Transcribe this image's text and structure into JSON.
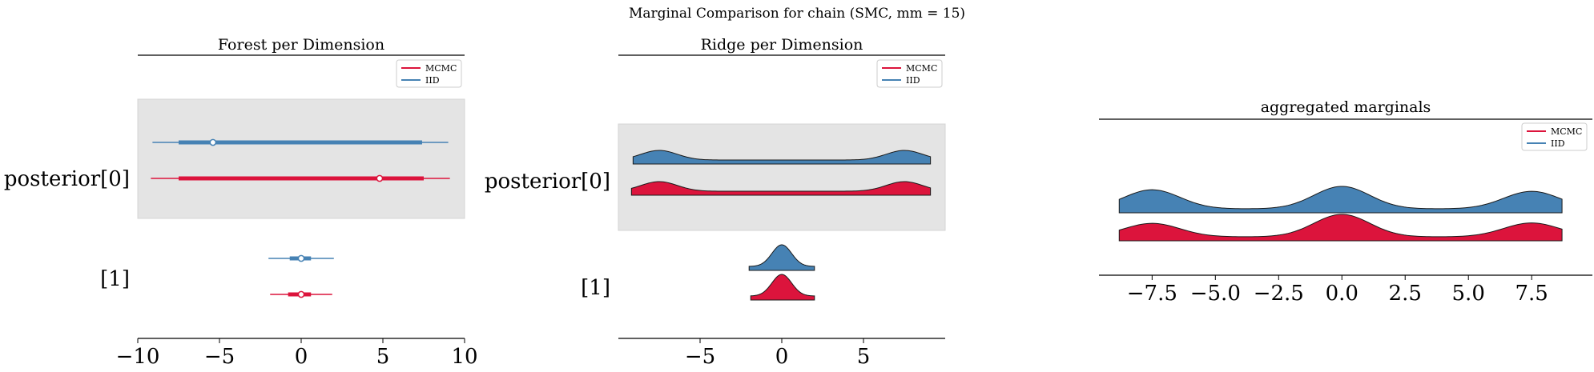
{
  "suptitle": "Marginal Comparison for chain (SMC, mm = 15)",
  "colors": {
    "MCMC": "#dc143c",
    "IID": "#4682b4",
    "band": "#e4e4e4",
    "ridge_edge": "#1a1a1a"
  },
  "chart_data": [
    {
      "type": "forest",
      "title": "Forest per Dimension",
      "row_labels": [
        "posterior[0]",
        "[1]"
      ],
      "legend": [
        "MCMC",
        "IID"
      ],
      "legend_position": "upper-right",
      "xlim": [
        -10,
        10
      ],
      "xticks": [
        -10,
        -5,
        0,
        5,
        10
      ],
      "xtick_labels": [
        "−10",
        "−5",
        "0",
        "5",
        "10"
      ],
      "series": [
        {
          "name": "IID",
          "row": 0,
          "hdi_outer": [
            -9.1,
            9.0
          ],
          "hdi_inner": [
            -7.5,
            7.4
          ],
          "point": -5.4
        },
        {
          "name": "MCMC",
          "row": 0,
          "hdi_outer": [
            -9.2,
            9.1
          ],
          "hdi_inner": [
            -7.5,
            7.5
          ],
          "point": 4.8
        },
        {
          "name": "IID",
          "row": 1,
          "hdi_outer": [
            -2.0,
            2.0
          ],
          "hdi_inner": [
            -0.7,
            0.6
          ],
          "point": 0.0
        },
        {
          "name": "MCMC",
          "row": 1,
          "hdi_outer": [
            -1.9,
            1.9
          ],
          "hdi_inner": [
            -0.8,
            0.6
          ],
          "point": 0.0
        }
      ]
    },
    {
      "type": "ridge",
      "title": "Ridge per Dimension",
      "row_labels": [
        "posterior[0]",
        "[1]"
      ],
      "legend": [
        "MCMC",
        "IID"
      ],
      "legend_position": "upper-right",
      "xlim": [
        -10,
        10
      ],
      "xticks": [
        -5,
        0,
        5
      ],
      "xtick_labels": [
        "−5",
        "0",
        "5"
      ],
      "series": [
        {
          "name": "IID",
          "row": 0,
          "range": [
            -9.1,
            9.1
          ],
          "modes": [
            -7.5,
            7.5
          ],
          "sd": 1.1
        },
        {
          "name": "MCMC",
          "row": 0,
          "range": [
            -9.2,
            9.1
          ],
          "modes": [
            -7.5,
            7.5
          ],
          "sd": 1.1
        },
        {
          "name": "IID",
          "row": 1,
          "range": [
            -2.0,
            2.0
          ],
          "modes": [
            0.0
          ],
          "sd": 0.6
        },
        {
          "name": "MCMC",
          "row": 1,
          "range": [
            -1.9,
            2.0
          ],
          "modes": [
            0.0
          ],
          "sd": 0.6
        }
      ]
    },
    {
      "type": "ridge",
      "title": "aggregated marginals",
      "legend": [
        "MCMC",
        "IID"
      ],
      "legend_position": "upper-right",
      "xlim": [
        -9.6,
        9.9
      ],
      "xticks": [
        -7.5,
        -5.0,
        -2.5,
        0.0,
        2.5,
        5.0,
        7.5
      ],
      "xtick_labels": [
        "−7.5",
        "−5.0",
        "−2.5",
        "0.0",
        "2.5",
        "5.0",
        "7.5"
      ],
      "series": [
        {
          "name": "IID",
          "range": [
            -8.8,
            8.7
          ],
          "modes": [
            -7.5,
            0.0,
            7.5
          ],
          "weights": [
            0.85,
            1.0,
            0.78
          ],
          "sd": 1.1
        },
        {
          "name": "MCMC",
          "range": [
            -8.8,
            8.7
          ],
          "modes": [
            -7.5,
            0.0,
            7.5
          ],
          "weights": [
            0.6,
            1.0,
            0.62
          ],
          "sd": 1.1
        }
      ]
    }
  ]
}
